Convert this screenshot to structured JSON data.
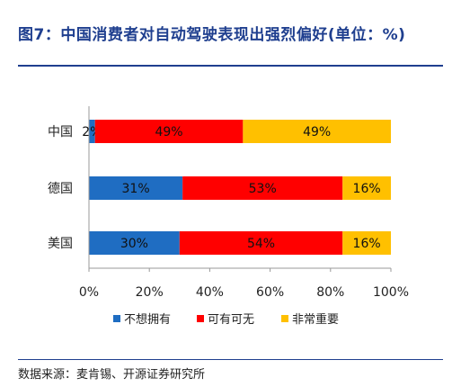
{
  "title": "图7：中国消费者对自动驾驶表现出强烈偏好(单位：%)",
  "source": "数据来源：麦肯锡、开源证券研究所",
  "colors": {
    "not_want": "#1F6DC2",
    "nice_to_have": "#FF0000",
    "very_important": "#FFC000",
    "title": "#1F3F8F"
  },
  "chart_data": {
    "type": "bar",
    "orientation": "horizontal",
    "stacked": true,
    "categories": [
      "中国",
      "德国",
      "美国"
    ],
    "series": [
      {
        "name": "不想拥有",
        "values": [
          2,
          31,
          30
        ],
        "labels": [
          "2%",
          "31%",
          "30%"
        ]
      },
      {
        "name": "可有可无",
        "values": [
          49,
          53,
          54
        ],
        "labels": [
          "49%",
          "53%",
          "54%"
        ]
      },
      {
        "name": "非常重要",
        "values": [
          49,
          16,
          16
        ],
        "labels": [
          "49%",
          "16%",
          "16%"
        ]
      }
    ],
    "xlim": [
      0,
      100
    ],
    "xticks": [
      "0%",
      "20%",
      "40%",
      "60%",
      "80%",
      "100%"
    ],
    "grid": false,
    "legend": "bottom"
  }
}
